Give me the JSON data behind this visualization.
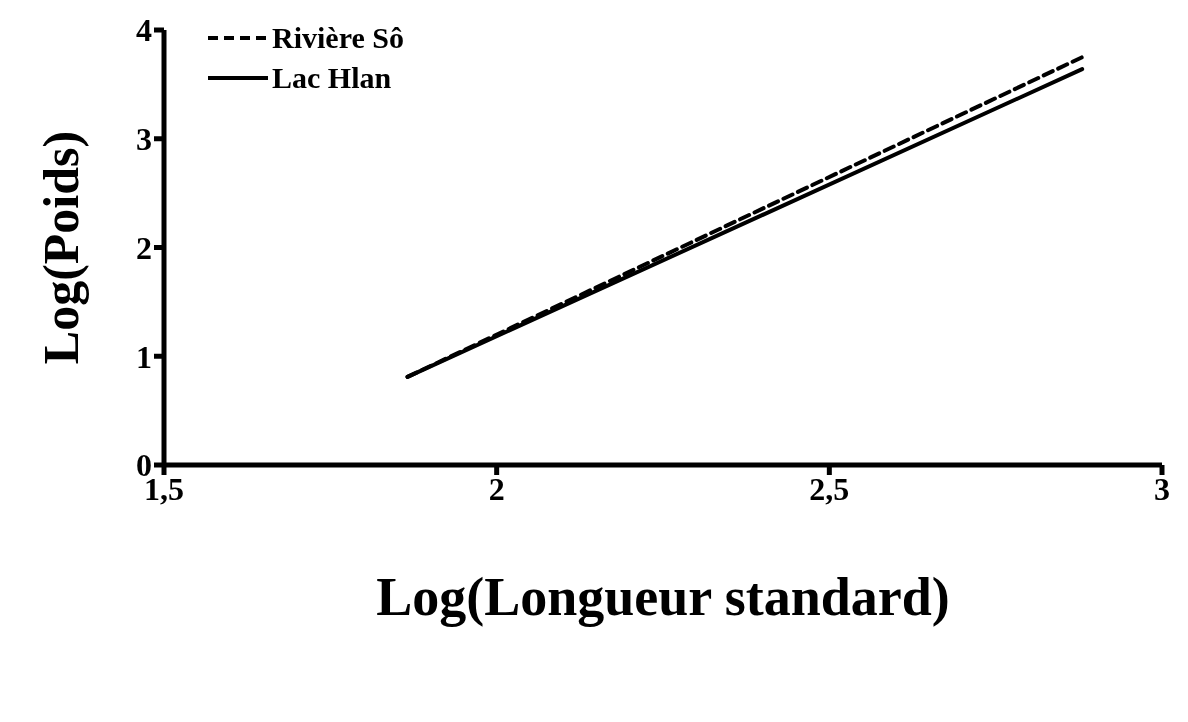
{
  "chart_data": {
    "type": "line",
    "xlabel": "Log(Longueur standard)",
    "ylabel": "Log(Poids)",
    "xlim": [
      1.5,
      3
    ],
    "xticks": [
      {
        "value": 1.5,
        "label": "1,5"
      },
      2,
      {
        "value": 2.5,
        "label": "2,5"
      },
      3
    ],
    "ylim": [
      0,
      4
    ],
    "yticks": [
      0,
      1,
      2,
      3,
      4
    ],
    "grid": false,
    "legend": "top left",
    "marker": "none",
    "x": [
      1.866,
      2.88
    ],
    "series": [
      {
        "name": "Rivière Sô",
        "color": "#000000",
        "line_style": "dashed",
        "values": [
          0.81,
          3.75
        ]
      },
      {
        "name": "Lac Hlan",
        "color": "#000000",
        "line_style": "solid",
        "values": [
          0.81,
          3.64
        ]
      }
    ]
  }
}
